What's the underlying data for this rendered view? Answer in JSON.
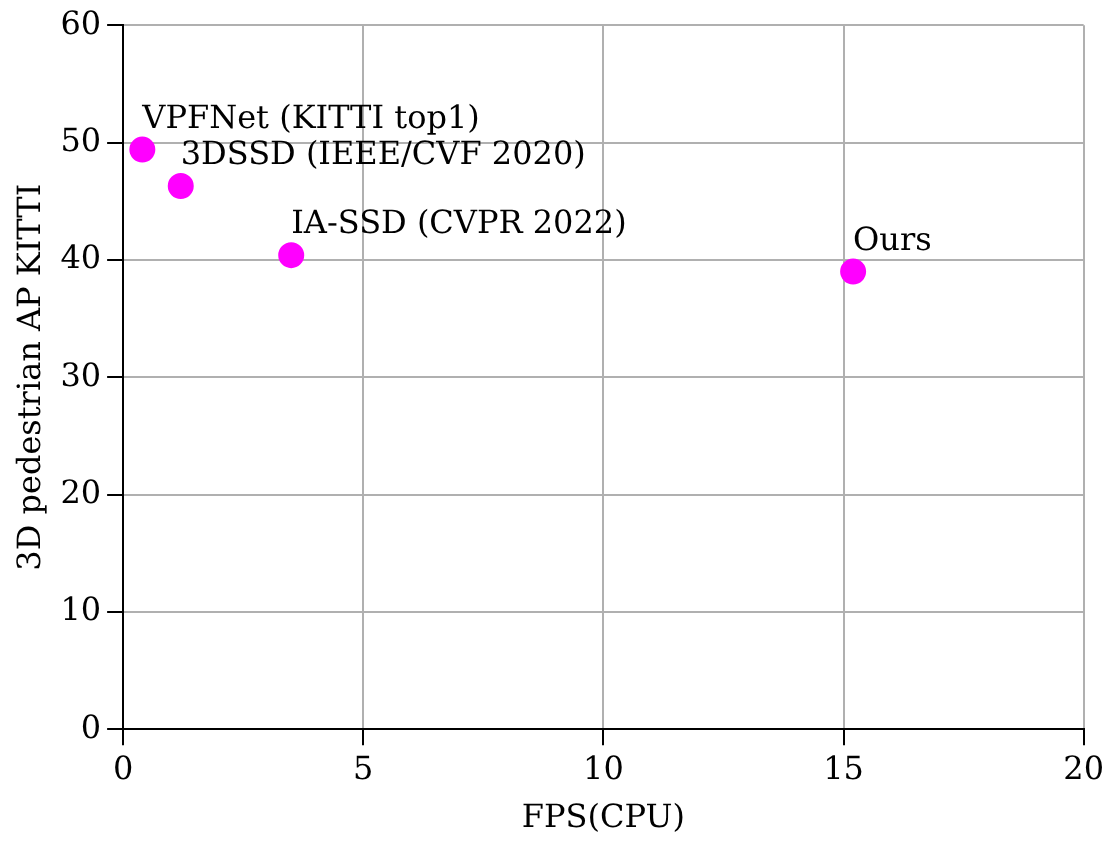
{
  "chart_data": {
    "type": "scatter",
    "xlabel": "FPS(CPU)",
    "ylabel": "3D pedestrian AP KITTI",
    "x": [
      0.4,
      1.2,
      3.5,
      15.2
    ],
    "values": [
      49.4,
      46.3,
      40.4,
      39.0
    ],
    "color": "#ff00ff",
    "xlim": [
      0,
      20
    ],
    "xticks": [
      0,
      5,
      10,
      15,
      20
    ],
    "ylim": [
      0,
      60
    ],
    "yticks": [
      0,
      10,
      20,
      30,
      40,
      50,
      60
    ],
    "grid": true,
    "legend": false,
    "marker": "circle",
    "annotations": [
      {
        "text": "VPFNet (KITTI top1)",
        "x": 0.4,
        "y": 49.4
      },
      {
        "text": "3DSSD (IEEE/CVF 2020)",
        "x": 1.2,
        "y": 46.3
      },
      {
        "text": "IA-SSD (CVPR 2022)",
        "x": 3.5,
        "y": 40.4
      },
      {
        "text": "Ours",
        "x": 15.2,
        "y": 39.0
      }
    ]
  }
}
